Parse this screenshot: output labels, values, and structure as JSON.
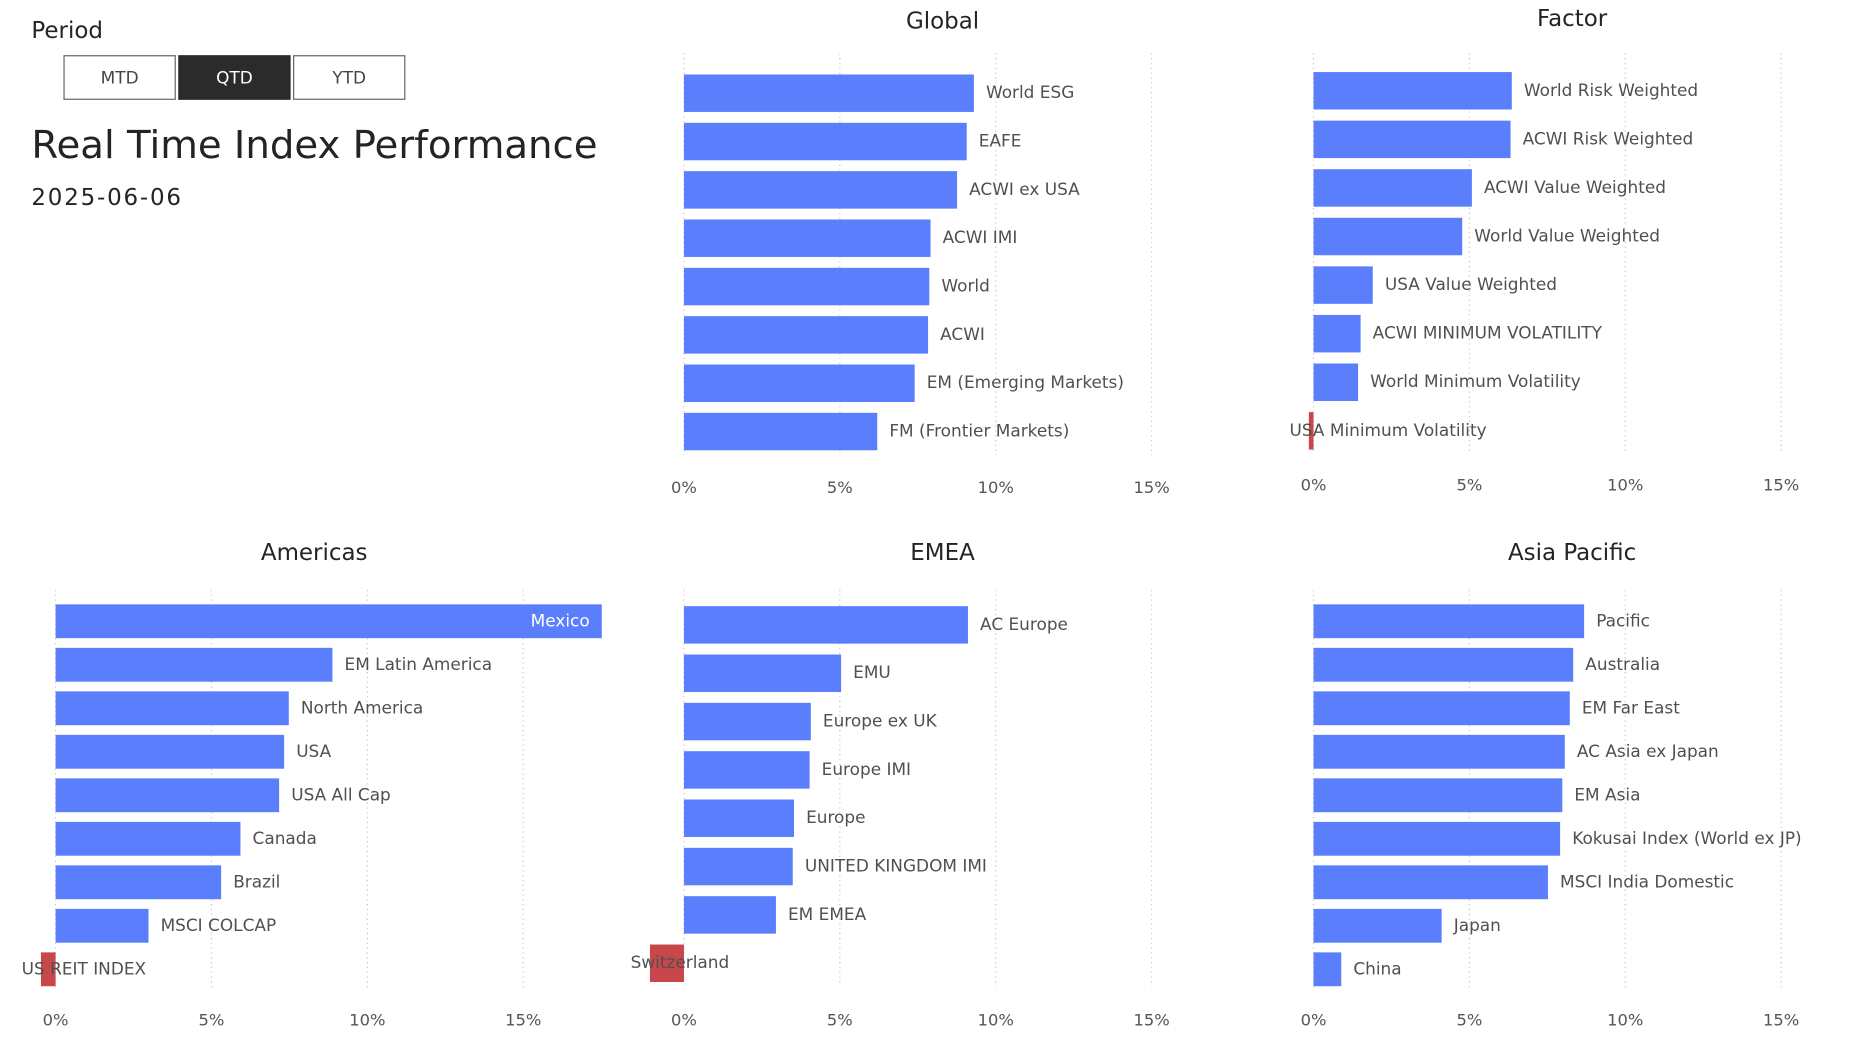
{
  "period_label": "Period",
  "buttons": [
    {
      "label": "MTD",
      "active": false
    },
    {
      "label": "QTD",
      "active": true
    },
    {
      "label": "YTD",
      "active": false
    }
  ],
  "title": "Real Time Index Performance",
  "date": "2025-06-06",
  "chart_data": [
    {
      "type": "bar",
      "orientation": "horizontal",
      "title": "Global",
      "categories": [
        "World ESG",
        "EAFE",
        "ACWI ex USA",
        "ACWI IMI",
        "World",
        "ACWI",
        "EM (Emerging Markets)",
        "FM (Frontier Markets)"
      ],
      "values": [
        9.3,
        9.07,
        8.76,
        7.91,
        7.87,
        7.83,
        7.4,
        6.2
      ],
      "color": "#5a7efc",
      "negative_color": "#c8474b",
      "grid": true,
      "xlim": [
        0,
        17.5
      ],
      "xticks": [
        {
          "value": 0,
          "label": "0%"
        },
        {
          "value": 5,
          "label": "5%"
        },
        {
          "value": 10,
          "label": "10%"
        },
        {
          "value": 15,
          "label": "15%"
        }
      ]
    },
    {
      "type": "bar",
      "orientation": "horizontal",
      "title": "Factor",
      "categories": [
        "World Risk Weighted",
        "ACWI Risk Weighted",
        "ACWI Value Weighted",
        "World Value Weighted",
        "USA Value Weighted",
        "ACWI MINIMUM VOLATILITY",
        "World Minimum Volatility",
        "USA Minimum Volatility"
      ],
      "values": [
        6.36,
        6.32,
        5.08,
        4.77,
        1.9,
        1.51,
        1.43,
        -0.15
      ],
      "color": "#5a7efc",
      "negative_color": "#c8474b",
      "grid": true,
      "xlim": [
        0,
        17.5
      ],
      "xticks": [
        {
          "value": 0,
          "label": "0%"
        },
        {
          "value": 5,
          "label": "5%"
        },
        {
          "value": 10,
          "label": "10%"
        },
        {
          "value": 15,
          "label": "15%"
        }
      ]
    },
    {
      "type": "bar",
      "orientation": "horizontal",
      "title": "Americas",
      "categories": [
        "Mexico",
        "EM Latin America",
        "North America",
        "USA",
        "USA All Cap",
        "Canada",
        "Brazil",
        "MSCI COLCAP",
        "US REIT INDEX"
      ],
      "values": [
        17.52,
        8.88,
        7.48,
        7.33,
        7.17,
        5.93,
        5.31,
        2.98,
        -0.47
      ],
      "color": "#5a7efc",
      "negative_color": "#c8474b",
      "grid": true,
      "xlim": [
        0,
        17.5
      ],
      "xticks": [
        {
          "value": 0,
          "label": "0%"
        },
        {
          "value": 5,
          "label": "5%"
        },
        {
          "value": 10,
          "label": "10%"
        },
        {
          "value": 15,
          "label": "15%"
        }
      ]
    },
    {
      "type": "bar",
      "orientation": "horizontal",
      "title": "EMEA",
      "categories": [
        "AC Europe",
        "EMU",
        "Europe ex UK",
        "Europe IMI",
        "Europe",
        "UNITED KINGDOM IMI",
        "EM EMEA",
        "Switzerland"
      ],
      "values": [
        9.11,
        5.04,
        4.07,
        4.03,
        3.53,
        3.49,
        2.95,
        -1.09
      ],
      "color": "#5a7efc",
      "negative_color": "#c8474b",
      "grid": true,
      "xlim": [
        0,
        17.5
      ],
      "xticks": [
        {
          "value": 0,
          "label": "0%"
        },
        {
          "value": 5,
          "label": "5%"
        },
        {
          "value": 10,
          "label": "10%"
        },
        {
          "value": 15,
          "label": "15%"
        }
      ]
    },
    {
      "type": "bar",
      "orientation": "horizontal",
      "title": "Asia Pacific",
      "categories": [
        "Pacific",
        "Australia",
        "EM Far East",
        "AC Asia ex Japan",
        "EM Asia",
        "Kokusai Index (World ex JP)",
        "MSCI India Domestic",
        "Japan",
        "China"
      ],
      "values": [
        8.68,
        8.33,
        8.22,
        8.06,
        7.98,
        7.91,
        7.52,
        4.11,
        0.89
      ],
      "color": "#5a7efc",
      "negative_color": "#c8474b",
      "grid": true,
      "xlim": [
        0,
        17.5
      ],
      "xticks": [
        {
          "value": 0,
          "label": "0%"
        },
        {
          "value": 5,
          "label": "5%"
        },
        {
          "value": 10,
          "label": "10%"
        },
        {
          "value": 15,
          "label": "15%"
        }
      ]
    }
  ]
}
